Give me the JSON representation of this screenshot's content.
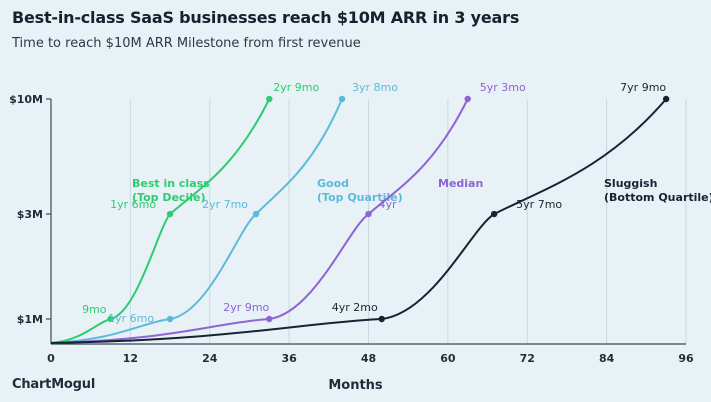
{
  "title": "Best-in-class SaaS businesses reach $10M ARR in 3 years",
  "subtitle": "Time to reach $10M ARR Milestone from first revenue",
  "brand": "ChartMogul",
  "chart_data": {
    "type": "line",
    "title": "Best-in-class SaaS businesses reach $10M ARR in 3 years",
    "subtitle": "Time to reach $10M ARR Milestone from first revenue",
    "xlabel": "Months",
    "ylabel": "",
    "xlim": [
      0,
      96
    ],
    "xticks": [
      0,
      12,
      24,
      36,
      48,
      60,
      72,
      84,
      96
    ],
    "yscale": "log",
    "yticks": [
      {
        "value": 1,
        "label": "$1M"
      },
      {
        "value": 3,
        "label": "$3M"
      },
      {
        "value": 10,
        "label": "$10M"
      }
    ],
    "grid": "vertical",
    "series": [
      {
        "name": "Best in class (Top Decile)",
        "name_lines": [
          "Best in class",
          "(Top Decile)"
        ],
        "color": "#2ecc71",
        "points": [
          {
            "x": 9,
            "y": 1,
            "label": "9mo"
          },
          {
            "x": 18,
            "y": 3,
            "label": "1yr 6mo"
          },
          {
            "x": 33,
            "y": 10,
            "label": "2yr 9mo"
          }
        ]
      },
      {
        "name": "Good (Top Quartile)",
        "name_lines": [
          "Good",
          "(Top Quartile)"
        ],
        "color": "#5bbadc",
        "points": [
          {
            "x": 18,
            "y": 1,
            "label": "1yr 6mo"
          },
          {
            "x": 31,
            "y": 3,
            "label": "2yr 7mo"
          },
          {
            "x": 44,
            "y": 10,
            "label": "3yr 8mo"
          }
        ]
      },
      {
        "name": "Median",
        "name_lines": [
          "Median"
        ],
        "color": "#8e63d6",
        "points": [
          {
            "x": 33,
            "y": 1,
            "label": "2yr 9mo"
          },
          {
            "x": 48,
            "y": 3,
            "label": "4yr"
          },
          {
            "x": 63,
            "y": 10,
            "label": "5yr 3mo"
          }
        ]
      },
      {
        "name": "Sluggish (Bottom Quartile)",
        "name_lines": [
          "Sluggish",
          "(Bottom Quartile)"
        ],
        "color": "#142433",
        "points": [
          {
            "x": 50,
            "y": 1,
            "label": "4yr 2mo"
          },
          {
            "x": 67,
            "y": 3,
            "label": "5yr 7mo"
          },
          {
            "x": 93,
            "y": 10,
            "label": "7yr 9mo"
          }
        ]
      }
    ]
  }
}
